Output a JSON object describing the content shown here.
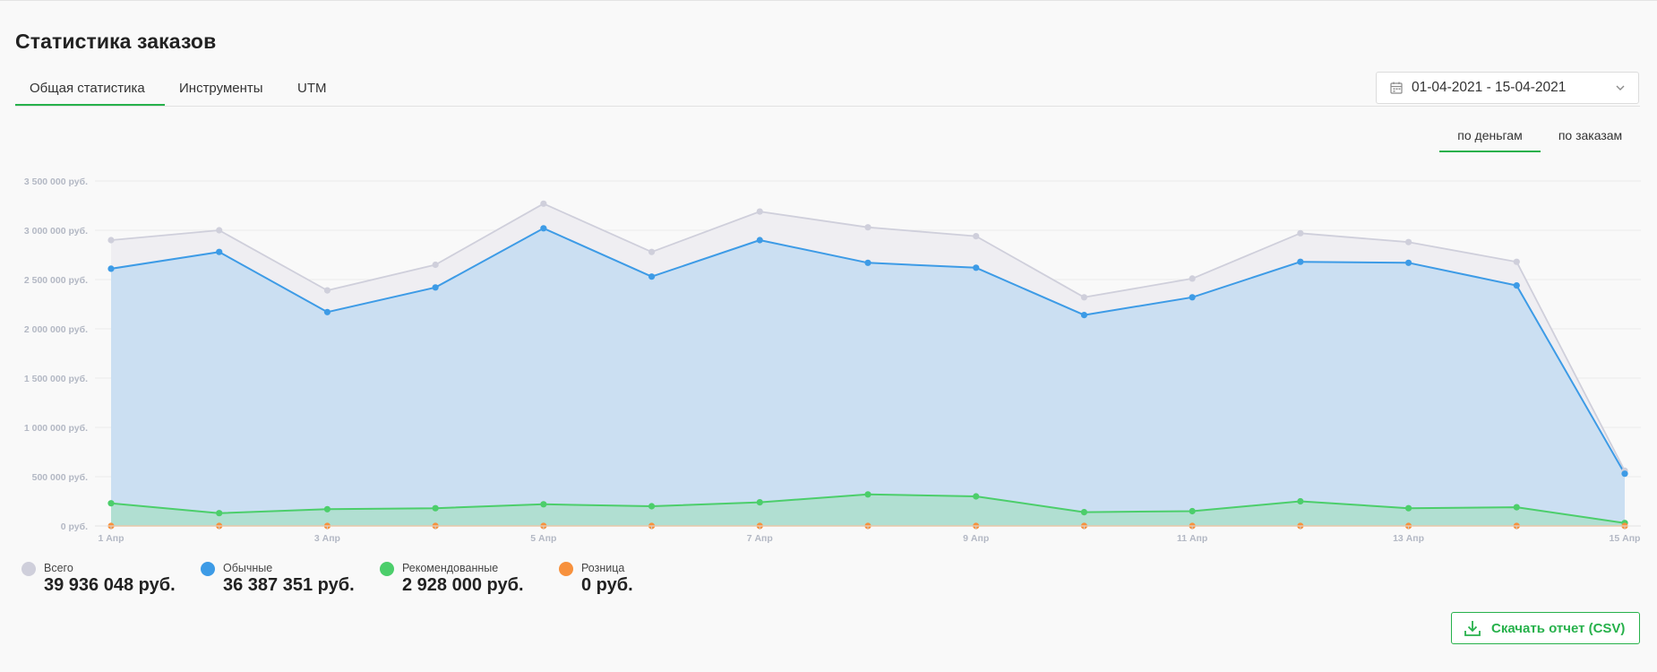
{
  "page_title": "Статистика заказов",
  "tabs": [
    {
      "label": "Общая статистика",
      "active": true
    },
    {
      "label": "Инструменты",
      "active": false
    },
    {
      "label": "UTM",
      "active": false
    }
  ],
  "date_range": {
    "value": "01-04-2021 - 15-04-2021",
    "icon": "calendar-icon"
  },
  "mode_tabs": [
    {
      "label": "по деньгам",
      "active": true
    },
    {
      "label": "по заказам",
      "active": false
    }
  ],
  "legend": [
    {
      "label": "Всего",
      "value": "39 936 048 руб.",
      "color": "#cfcfdb"
    },
    {
      "label": "Обычные",
      "value": "36 387 351 руб.",
      "color": "#3d9be6"
    },
    {
      "label": "Рекомендованные",
      "value": "2 928 000 руб.",
      "color": "#4cce6b"
    },
    {
      "label": "Розница",
      "value": "0 руб.",
      "color": "#f7913d"
    }
  ],
  "download_button": {
    "label": "Скачать отчет (CSV)",
    "icon": "download-icon"
  },
  "colors": {
    "accent": "#27b14b"
  },
  "chart_data": {
    "type": "area",
    "x": [
      "1 Апр",
      "2 Апр",
      "3 Апр",
      "4 Апр",
      "5 Апр",
      "6 Апр",
      "7 Апр",
      "8 Апр",
      "9 Апр",
      "10 Апр",
      "11 Апр",
      "12 Апр",
      "13 Апр",
      "14 Апр",
      "15 Апр"
    ],
    "x_tick_labels": [
      "1 Апр",
      "3 Апр",
      "5 Апр",
      "7 Апр",
      "9 Апр",
      "11 Апр",
      "13 Апр",
      "15 Апр"
    ],
    "y_tick_labels": [
      "0 руб.",
      "500 000 руб.",
      "1 000 000 руб.",
      "1 500 000 руб.",
      "2 000 000 руб.",
      "2 500 000 руб.",
      "3 000 000 руб.",
      "3 500 000 руб."
    ],
    "ylim": [
      0,
      3500000
    ],
    "grid": true,
    "legend_position": "bottom-left",
    "series": [
      {
        "name": "Всего",
        "color": "#cfcfdb",
        "values": [
          2900000,
          3000000,
          2390000,
          2650000,
          3270000,
          2780000,
          3190000,
          3030000,
          2940000,
          2320000,
          2510000,
          2970000,
          2880000,
          2680000,
          560000
        ]
      },
      {
        "name": "Обычные",
        "color": "#3d9be6",
        "values": [
          2610000,
          2780000,
          2170000,
          2420000,
          3020000,
          2530000,
          2900000,
          2670000,
          2620000,
          2140000,
          2320000,
          2680000,
          2670000,
          2440000,
          530000
        ]
      },
      {
        "name": "Рекомендованные",
        "color": "#4cce6b",
        "values": [
          230000,
          130000,
          170000,
          180000,
          220000,
          200000,
          240000,
          320000,
          300000,
          140000,
          150000,
          250000,
          180000,
          190000,
          30000
        ]
      },
      {
        "name": "Розница",
        "color": "#f7913d",
        "values": [
          0,
          0,
          0,
          0,
          0,
          0,
          0,
          0,
          0,
          0,
          0,
          0,
          0,
          0,
          0
        ]
      }
    ]
  }
}
